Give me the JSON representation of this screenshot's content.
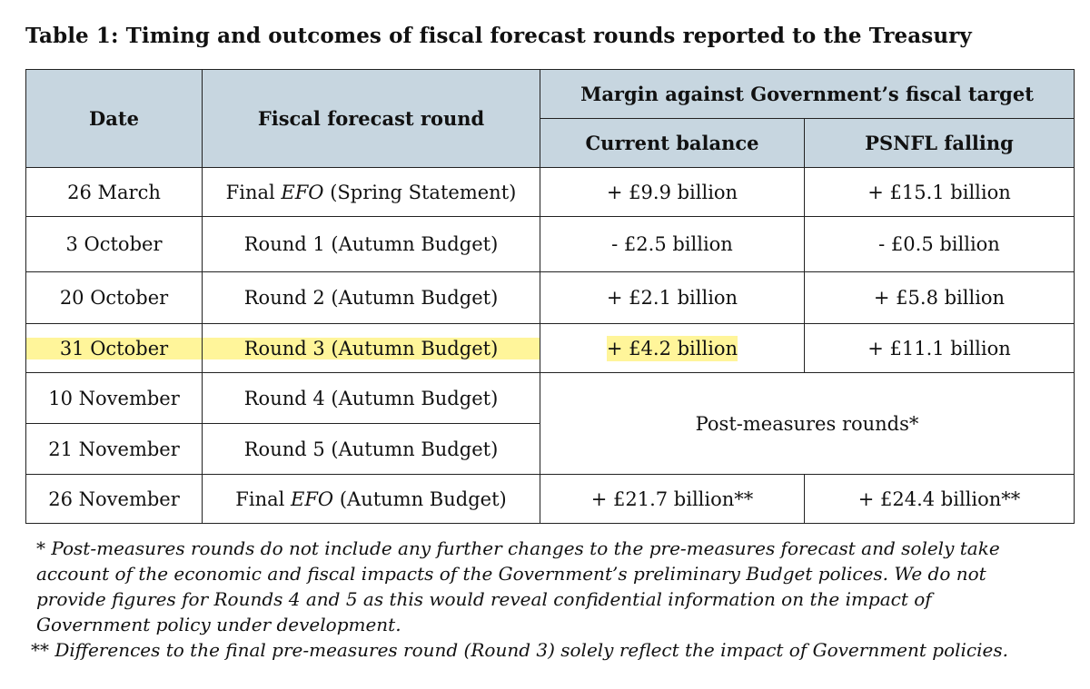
{
  "title": "Table 1: Timing and outcomes of fiscal forecast rounds reported to the Treasury",
  "header": {
    "date": "Date",
    "round": "Fiscal forecast round",
    "margin": "Margin against Government’s fiscal target",
    "current_balance": "Current balance",
    "psnfl": "PSNFL falling"
  },
  "rows": [
    {
      "date": "26 March",
      "round_prefix": "Final ",
      "round_em": "EFO",
      "round_suffix": " (Spring Statement)",
      "current": "+ £9.9 billion",
      "psnfl": "+ £15.1 billion"
    },
    {
      "date": "3 October",
      "round": "Round 1 (Autumn Budget)",
      "current": "- £2.5 billion",
      "psnfl": "- £0.5 billion"
    },
    {
      "date": "20 October",
      "round": "Round 2 (Autumn Budget)",
      "current": "+ £2.1 billion",
      "psnfl": "+ £5.8 billion"
    },
    {
      "date": "31 October",
      "round": "Round 3 (Autumn Budget)",
      "current": "+ £4.2 billion",
      "psnfl": "+ £11.1 billion"
    },
    {
      "date": "10 November",
      "round": "Round 4 (Autumn Budget)"
    },
    {
      "date": "21 November",
      "round": "Round 5 (Autumn Budget)"
    },
    {
      "date": "26 November",
      "round_prefix": "Final ",
      "round_em": "EFO",
      "round_suffix": " (Autumn Budget)",
      "current": "+ £21.7 billion**",
      "psnfl": "+ £24.4 billion**"
    }
  ],
  "post_measures": "Post-measures rounds*",
  "highlight_color": "#fff59a",
  "header_bg": "#c7d6e0",
  "notes": {
    "n1_line1": "* Post-measures rounds do not include any further changes to the pre-measures forecast and solely take",
    "n1_line2": "account of the economic and fiscal impacts of the Government’s preliminary Budget polices. We do not",
    "n1_line3": "provide figures for Rounds 4 and 5 as this would reveal confidential information on the impact of",
    "n1_line4": "Government policy under development.",
    "n2": "** Differences to the final pre-measures round (Round 3) solely reflect the impact of Government policies."
  }
}
